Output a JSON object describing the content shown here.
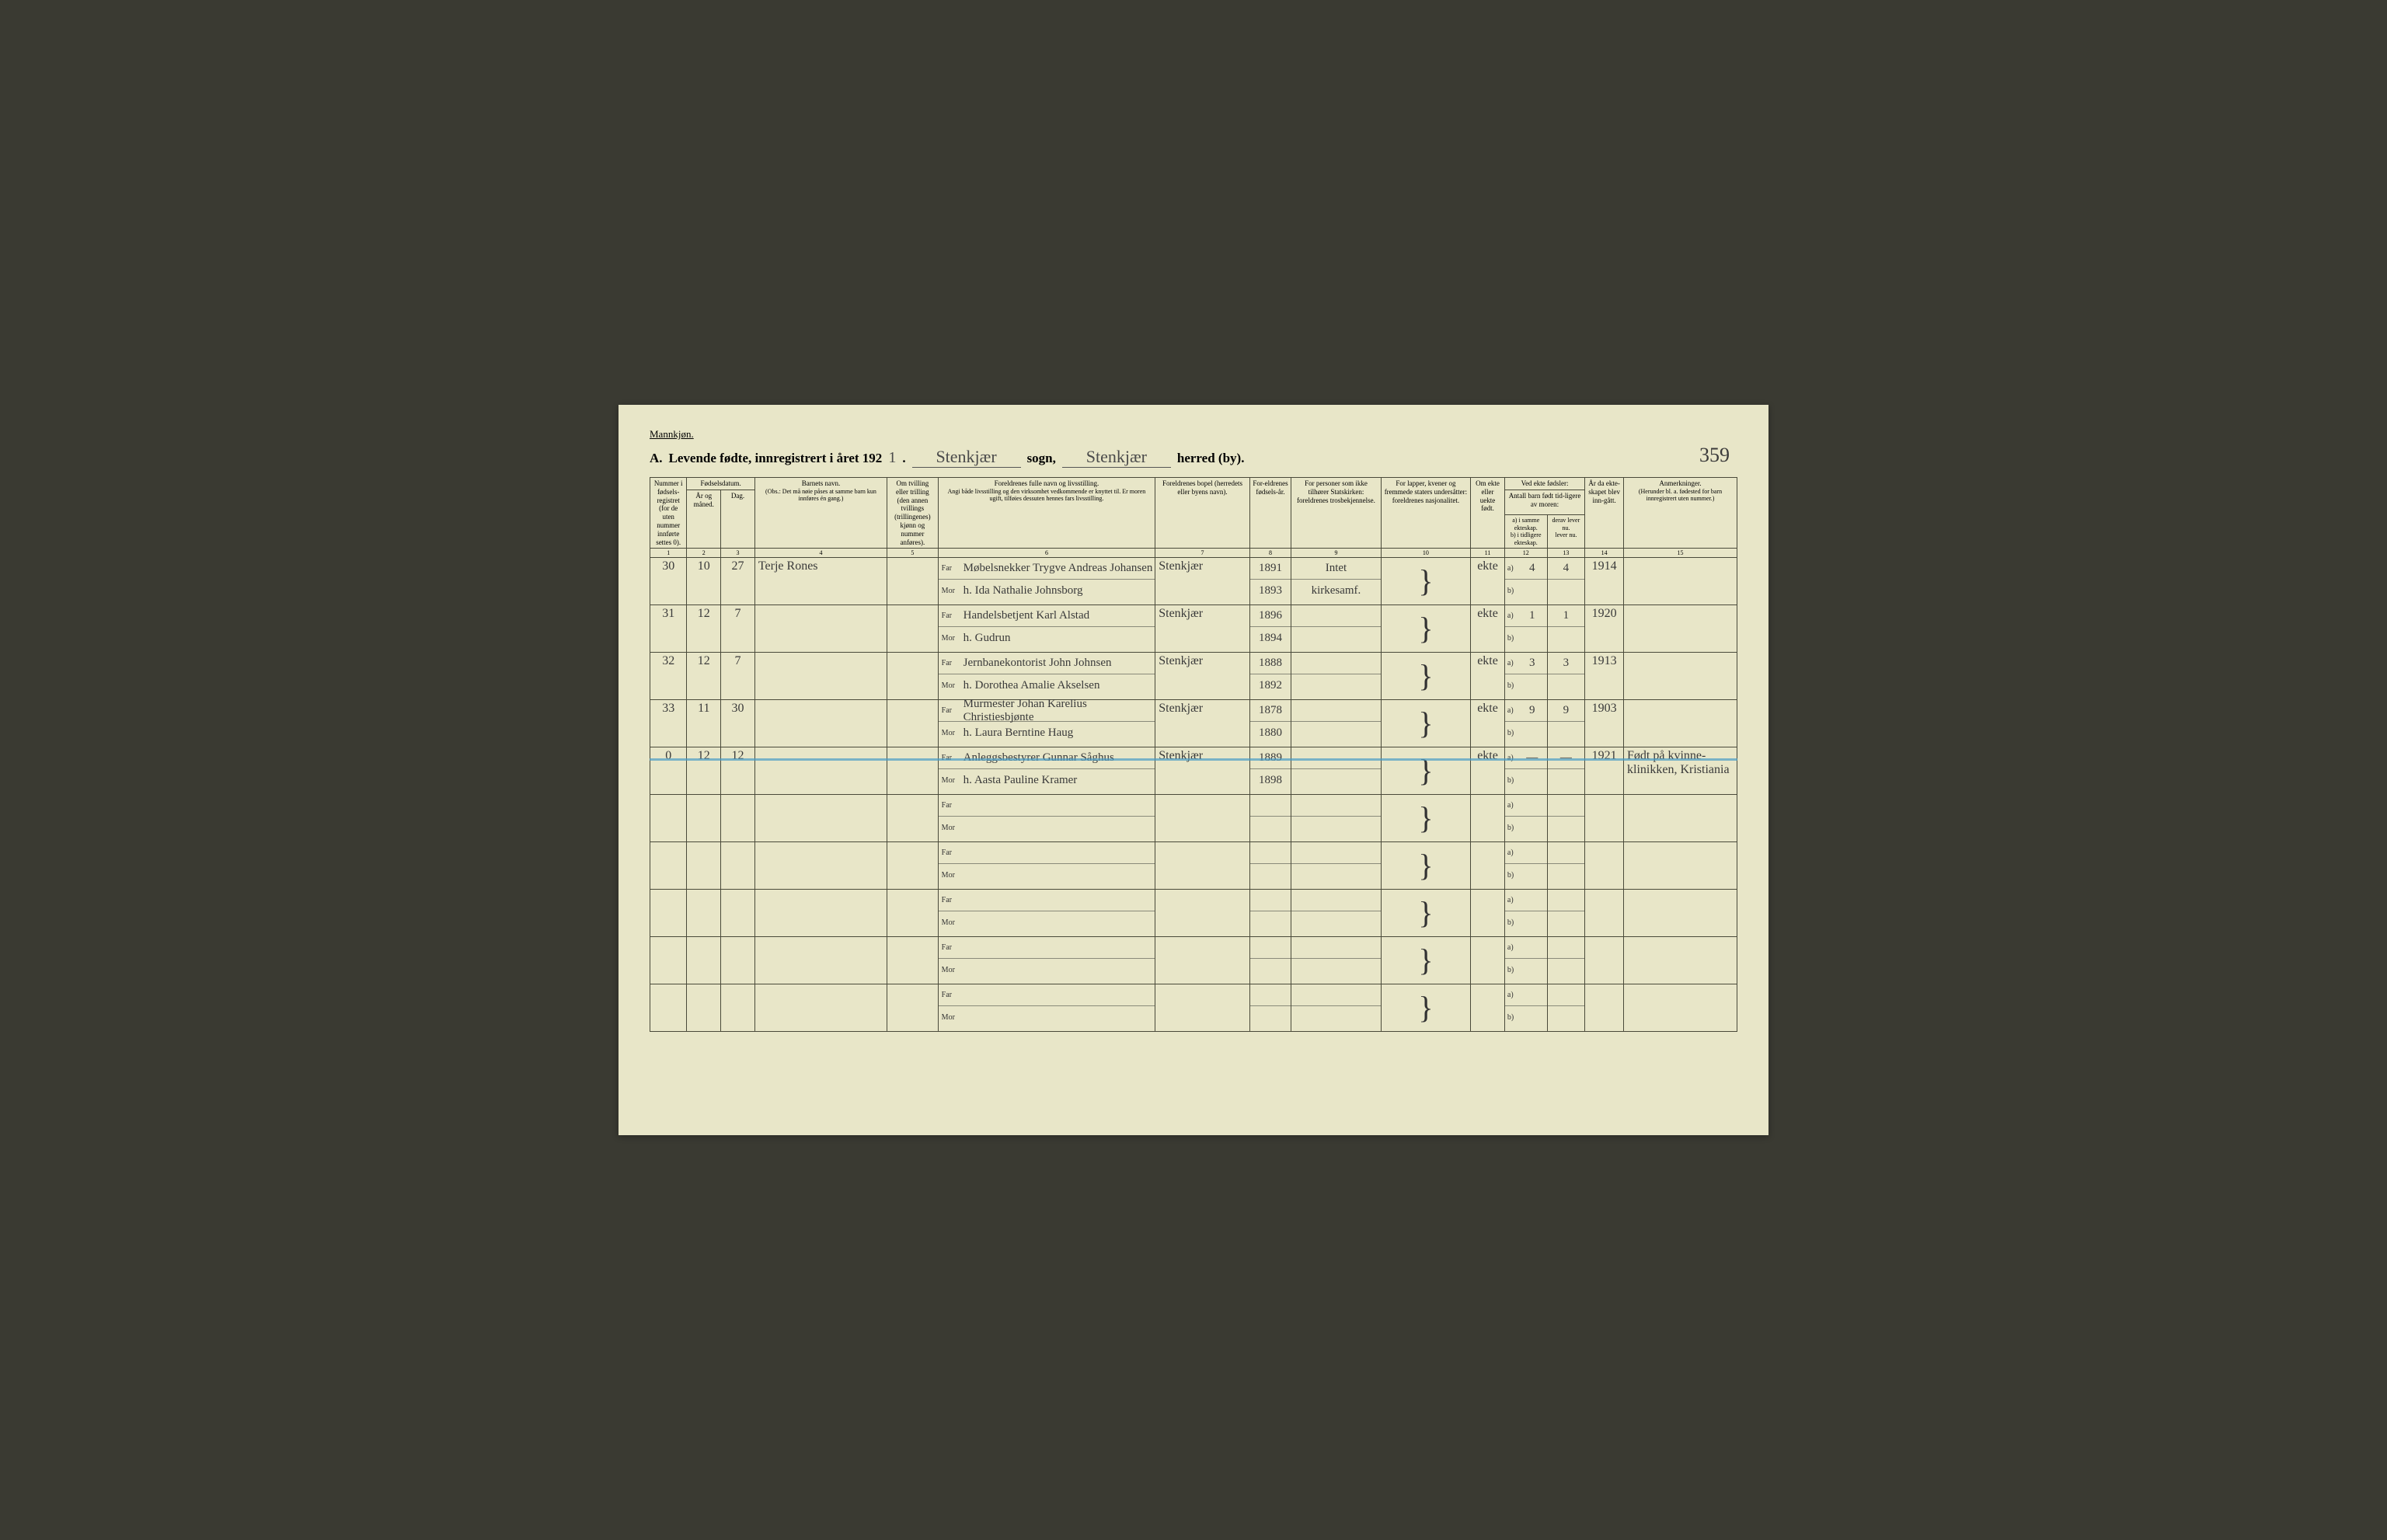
{
  "document": {
    "gender_label": "Mannkjøn.",
    "section_letter": "A.",
    "title_prefix": "Levende fødte, innregistrert i året 192",
    "year_digit": "1",
    "sogn_handwritten": "Stenkjær",
    "sogn_label": "sogn,",
    "herred_handwritten": "Stenkjær",
    "herred_label": "herred (by).",
    "page_number": "359"
  },
  "columns": {
    "c1": "Nummer i fødsels-registret (for de uten nummer innførte settes 0).",
    "c2_group": "Fødselsdatum.",
    "c2": "År og måned.",
    "c3": "Dag.",
    "c4": "Barnets navn.",
    "c4_note": "(Obs.: Det må nøie påses at samme barn kun innføres én gang.)",
    "c5": "Om tvilling eller trilling (den annen tvillings (trillingenes) kjønn og nummer anføres).",
    "c6": "Foreldrenes fulle navn og livsstilling.",
    "c6_note": "Angi både livsstilling og den virksomhet vedkommende er knyttet til. Er moren ugift, tilføies dessuten hennes fars livsstilling.",
    "c7": "Foreldrenes bopel (herredets eller byens navn).",
    "c8": "For-eldrenes fødsels-år.",
    "c9": "For personer som ikke tilhører Statskirken: foreldrenes trosbekjennelse.",
    "c10": "For lapper, kvener og fremmede staters undersåtter: foreldrenes nasjonalitet.",
    "c11": "Om ekte eller uekte født.",
    "c12_group": "Ved ekte fødsler:",
    "c12_sub": "Antall barn født tid-ligere av moren:",
    "c12": "a) i samme ekteskap.",
    "c12b": "b) i tidligere ekteskap.",
    "c13": "derav lever nu.",
    "c13b": "lever nu.",
    "c14": "År da ekte-skapet blev inn-gått.",
    "c15": "Anmerkninger.",
    "c15_note": "(Herunder bl. a. fødested for barn innregistrert uten nummer.)",
    "far_label": "Far",
    "mor_label": "Mor"
  },
  "colnums": [
    "1",
    "2",
    "3",
    "4",
    "5",
    "6",
    "7",
    "8",
    "9",
    "10",
    "11",
    "12",
    "13",
    "14",
    "15"
  ],
  "rows": [
    {
      "num": "30",
      "month": "10",
      "day": "27",
      "child": "Terje Rones",
      "twin": "",
      "far": "Møbelsnekker Trygve Andreas Johansen",
      "mor": "h. Ida Nathalie Johnsborg",
      "bopel": "Stenkjær",
      "far_year": "1891",
      "mor_year": "1893",
      "tros_far": "Intet",
      "tros_mor": "kirkesamf.",
      "nasj": "",
      "ekte": "ekte",
      "a_same": "4",
      "a_lever": "4",
      "b_tid": "",
      "b_lever": "",
      "marriage": "1914",
      "remarks": ""
    },
    {
      "num": "31",
      "month": "12",
      "day": "7",
      "child": "",
      "twin": "",
      "far": "Handelsbetjent Karl Alstad",
      "mor": "h. Gudrun",
      "bopel": "Stenkjær",
      "far_year": "1896",
      "mor_year": "1894",
      "tros_far": "",
      "tros_mor": "",
      "nasj": "",
      "ekte": "ekte",
      "a_same": "1",
      "a_lever": "1",
      "b_tid": "",
      "b_lever": "",
      "marriage": "1920",
      "remarks": ""
    },
    {
      "num": "32",
      "month": "12",
      "day": "7",
      "child": "",
      "twin": "",
      "far": "Jernbanekontorist John Johnsen",
      "mor": "h. Dorothea Amalie Akselsen",
      "bopel": "Stenkjær",
      "far_year": "1888",
      "mor_year": "1892",
      "tros_far": "",
      "tros_mor": "",
      "nasj": "",
      "ekte": "ekte",
      "a_same": "3",
      "a_lever": "3",
      "b_tid": "",
      "b_lever": "",
      "marriage": "1913",
      "remarks": ""
    },
    {
      "num": "33",
      "month": "11",
      "day": "30",
      "child": "",
      "twin": "",
      "far": "Murmester Johan Karelius Christiesbjønte",
      "mor": "h. Laura Berntine Haug",
      "bopel": "Stenkjær",
      "far_year": "1878",
      "mor_year": "1880",
      "tros_far": "",
      "tros_mor": "",
      "nasj": "",
      "ekte": "ekte",
      "a_same": "9",
      "a_lever": "9",
      "b_tid": "",
      "b_lever": "",
      "marriage": "1903",
      "remarks": ""
    },
    {
      "num": "0",
      "month": "12",
      "day": "12",
      "child": "",
      "twin": "",
      "far": "Anleggsbestyrer Gunnar Såghus",
      "mor": "h. Aasta Pauline Kramer",
      "bopel": "Stenkjær",
      "far_year": "1889",
      "mor_year": "1898",
      "tros_far": "",
      "tros_mor": "",
      "nasj": "",
      "ekte": "ekte",
      "a_same": "—",
      "a_lever": "—",
      "b_tid": "",
      "b_lever": "",
      "marriage": "1921",
      "remarks": "Født på kvinne-klinikken, Kristiania"
    },
    {
      "num": "",
      "month": "",
      "day": "",
      "child": "",
      "twin": "",
      "far": "",
      "mor": "",
      "bopel": "",
      "far_year": "",
      "mor_year": "",
      "tros_far": "",
      "tros_mor": "",
      "nasj": "",
      "ekte": "",
      "a_same": "",
      "a_lever": "",
      "b_tid": "",
      "b_lever": "",
      "marriage": "",
      "remarks": ""
    },
    {
      "num": "",
      "month": "",
      "day": "",
      "child": "",
      "twin": "",
      "far": "",
      "mor": "",
      "bopel": "",
      "far_year": "",
      "mor_year": "",
      "tros_far": "",
      "tros_mor": "",
      "nasj": "",
      "ekte": "",
      "a_same": "",
      "a_lever": "",
      "b_tid": "",
      "b_lever": "",
      "marriage": "",
      "remarks": ""
    },
    {
      "num": "",
      "month": "",
      "day": "",
      "child": "",
      "twin": "",
      "far": "",
      "mor": "",
      "bopel": "",
      "far_year": "",
      "mor_year": "",
      "tros_far": "",
      "tros_mor": "",
      "nasj": "",
      "ekte": "",
      "a_same": "",
      "a_lever": "",
      "b_tid": "",
      "b_lever": "",
      "marriage": "",
      "remarks": ""
    },
    {
      "num": "",
      "month": "",
      "day": "",
      "child": "",
      "twin": "",
      "far": "",
      "mor": "",
      "bopel": "",
      "far_year": "",
      "mor_year": "",
      "tros_far": "",
      "tros_mor": "",
      "nasj": "",
      "ekte": "",
      "a_same": "",
      "a_lever": "",
      "b_tid": "",
      "b_lever": "",
      "marriage": "",
      "remarks": ""
    },
    {
      "num": "",
      "month": "",
      "day": "",
      "child": "",
      "twin": "",
      "far": "",
      "mor": "",
      "bopel": "",
      "far_year": "",
      "mor_year": "",
      "tros_far": "",
      "tros_mor": "",
      "nasj": "",
      "ekte": "",
      "a_same": "",
      "a_lever": "",
      "b_tid": "",
      "b_lever": "",
      "marriage": "",
      "remarks": ""
    }
  ],
  "style": {
    "page_bg": "#e8e6c8",
    "border_color": "#4a4a3a",
    "handwriting_color": "#3a3a3a",
    "blue_line_color": "#4a9bc4",
    "printed_font": "Georgia, Times New Roman, serif",
    "script_font": "Brush Script MT, cursive",
    "header_fontsize": 9,
    "body_fontsize": 16
  }
}
